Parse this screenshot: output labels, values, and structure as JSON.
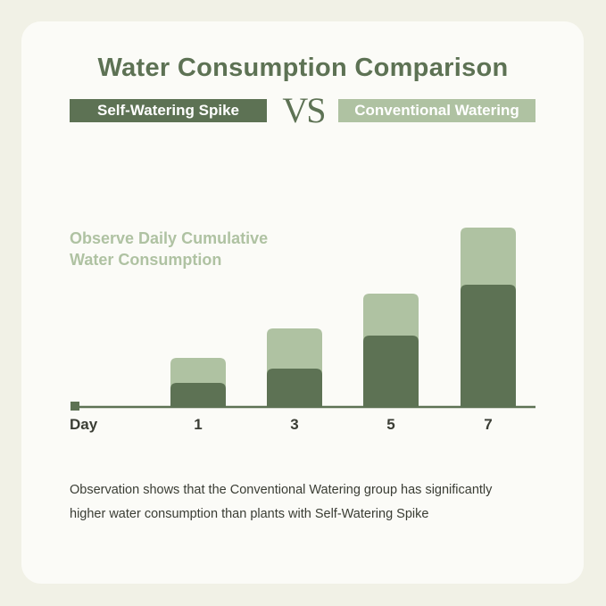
{
  "title": "Water Consumption Comparison",
  "legend": {
    "series_a": "Self-Watering Spike",
    "vs": "VS",
    "series_b": "Conventional Watering"
  },
  "subtitle_line1": "Observe Daily Cumulative",
  "subtitle_line2": "Water Consumption",
  "observation_line1": "Observation shows that the Conventional Watering group has significantly",
  "observation_line2": "higher water consumption than plants with Self-Watering Spike",
  "colors": {
    "self_watering": "#5d7254",
    "conventional": "#afc2a2",
    "card": "#fbfbf7",
    "background": "#f1f1e6"
  },
  "chart_data": {
    "type": "bar",
    "xlabel": "Day",
    "categories": [
      "1",
      "3",
      "5",
      "7"
    ],
    "series": [
      {
        "name": "Self-Watering Spike",
        "values": [
          27,
          43,
          80,
          137
        ],
        "color": "#5d7254"
      },
      {
        "name": "Conventional Watering",
        "values": [
          55,
          88,
          127,
          201
        ],
        "color": "#afc2a2"
      }
    ],
    "ylim": [
      0,
      201
    ],
    "grid": false
  }
}
